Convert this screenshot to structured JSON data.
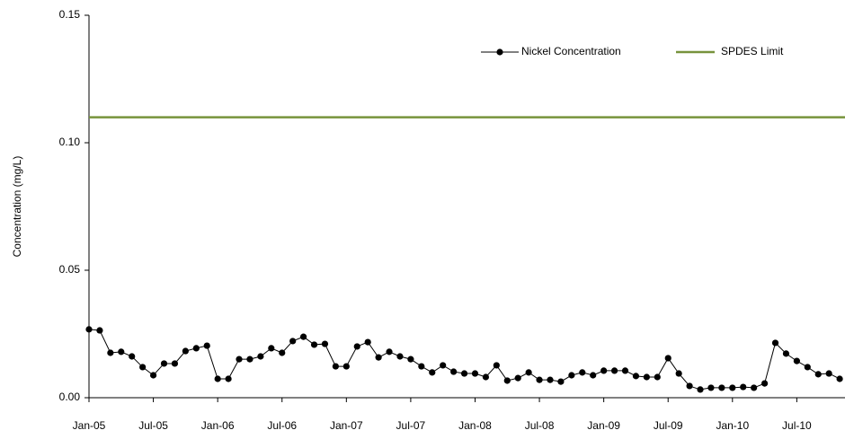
{
  "chart_data": {
    "type": "line",
    "ylabel": "Concentration (mg/L)",
    "categories": [
      "Jan-05",
      null,
      null,
      null,
      null,
      null,
      "Jul-05",
      null,
      null,
      null,
      null,
      null,
      "Jan-06",
      null,
      null,
      null,
      null,
      null,
      "Jul-06",
      null,
      null,
      null,
      null,
      null,
      "Jan-07",
      null,
      null,
      null,
      null,
      null,
      "Jul-07",
      null,
      null,
      null,
      null,
      null,
      "Jan-08",
      null,
      null,
      null,
      null,
      null,
      "Jul-08",
      null,
      null,
      null,
      null,
      null,
      "Jan-09",
      null,
      null,
      null,
      null,
      null,
      "Jul-09",
      null,
      null,
      null,
      null,
      null,
      "Jan-10",
      null,
      null,
      null,
      null,
      null,
      "Jul-10",
      null,
      null,
      null,
      null
    ],
    "series": [
      {
        "name": "Nickel Concentration",
        "color": "#000000",
        "values": [
          0.0268,
          0.0264,
          0.0176,
          0.018,
          0.0162,
          0.012,
          0.0088,
          0.0134,
          0.0134,
          0.0183,
          0.0194,
          0.0204,
          0.0074,
          0.0074,
          0.0151,
          0.0151,
          0.0162,
          0.0194,
          0.0176,
          0.0222,
          0.0239,
          0.0208,
          0.0211,
          0.0123,
          0.0123,
          0.0201,
          0.0218,
          0.0158,
          0.018,
          0.0162,
          0.0151,
          0.0123,
          0.0099,
          0.0127,
          0.0102,
          0.0095,
          0.0095,
          0.0081,
          0.0127,
          0.0067,
          0.0077,
          0.0099,
          0.007,
          0.007,
          0.0063,
          0.0088,
          0.0099,
          0.0088,
          0.0106,
          0.0106,
          0.0106,
          0.0085,
          0.0081,
          0.0081,
          0.0155,
          0.0095,
          0.0046,
          0.0032,
          0.0039,
          0.0039,
          0.0039,
          0.0042,
          0.0039,
          0.0056,
          0.0215,
          0.0173,
          0.0144,
          0.012,
          0.0092,
          0.0095,
          0.0074
        ]
      }
    ],
    "reference_line": {
      "name": "SPDES Limit",
      "value": 0.11,
      "color": "#77933c"
    },
    "ylim": [
      0,
      0.15
    ],
    "yticks": [
      {
        "value": 0,
        "label": "0.00"
      },
      {
        "value": 0.05,
        "label": "0.05"
      },
      {
        "value": 0.1,
        "label": "0.10"
      },
      {
        "value": 0.15,
        "label": "0.15"
      }
    ],
    "legend": "top-right"
  }
}
